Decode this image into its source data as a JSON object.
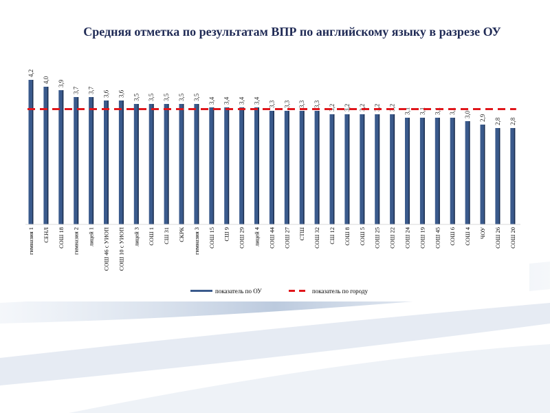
{
  "title": "Средняя отметка по результатам ВПР по английскому языку в разрезе ОУ",
  "chart_data": {
    "type": "bar",
    "title": "Средняя отметка по результатам ВПР по английскому языку в разрезе ОУ",
    "categories": [
      "гимназия 1",
      "СЕНЛ",
      "СОШ 18",
      "гимназия 2",
      "лицей 1",
      "СОШ 46 с УИОП",
      "СОШ 10 с УИОП",
      "лицей 3",
      "СОШ 1",
      "СШ 31",
      "СКРК",
      "гимназия 3",
      "СОШ 15",
      "СШ 9",
      "СОШ 29",
      "лицей 4",
      "СОШ 44",
      "СОШ 27",
      "СТШ",
      "СОШ 32",
      "СШ 12",
      "СОШ 8",
      "СОШ 5",
      "СОШ 25",
      "СОШ 22",
      "СОШ 24",
      "СОШ 19",
      "СОШ 45",
      "СОШ 6",
      "СОШ 4",
      "ЧОУ",
      "СОШ 26",
      "СОШ 20"
    ],
    "series": [
      {
        "name": "показатель по ОУ",
        "color": "#3a5a8c",
        "values": [
          4.2,
          4.0,
          3.9,
          3.7,
          3.7,
          3.6,
          3.6,
          3.5,
          3.5,
          3.5,
          3.5,
          3.5,
          3.4,
          3.4,
          3.4,
          3.4,
          3.3,
          3.3,
          3.3,
          3.3,
          3.2,
          3.2,
          3.2,
          3.2,
          3.2,
          3.1,
          3.1,
          3.1,
          3.1,
          3.0,
          2.9,
          2.8,
          2.8
        ]
      },
      {
        "name": "показатель по городу",
        "color": "#e0161b",
        "style": "dashed",
        "value": 3.35
      }
    ],
    "data_labels": [
      "4,2",
      "4,0",
      "3,9",
      "3,7",
      "3,7",
      "3,6",
      "3,6",
      "3,5",
      "3,5",
      "3,5",
      "3,5",
      "3,5",
      "3,4",
      "3,4",
      "3,4",
      "3,4",
      "3,3",
      "3,3",
      "3,3",
      "3,3",
      "3,2",
      "3,2",
      "3,2",
      "3,2",
      "3,2",
      "3,1",
      "3,1",
      "3,1",
      "3,1",
      "3,0",
      "2,9",
      "2,8",
      "2,8"
    ],
    "ylim": [
      0,
      4.2
    ],
    "grid": false,
    "legend": "bottom"
  }
}
